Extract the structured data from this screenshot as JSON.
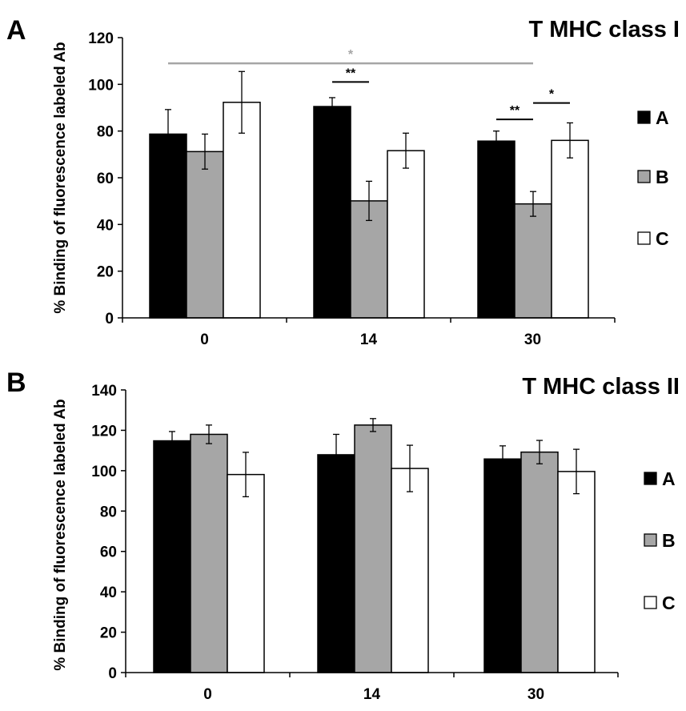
{
  "colors": {
    "A": "#000000",
    "B": "#a6a6a6",
    "C": "#ffffff",
    "bar_outline": "#000000",
    "sig_gray": "#a6a6a6",
    "sig_black": "#000000"
  },
  "chart_data": [
    {
      "panel": "A",
      "type": "bar",
      "title": "T MHC class I",
      "ylabel": "% Binding of fluorescence labeled Ab",
      "xlabel": "",
      "categories": [
        "0",
        "14",
        "30"
      ],
      "ylim": [
        0,
        120
      ],
      "yticks": [
        0,
        20,
        40,
        60,
        80,
        100,
        120
      ],
      "grid": false,
      "legend_position": "right",
      "series": [
        {
          "name": "A",
          "values": [
            78.7,
            90.5,
            75.7
          ],
          "errors": [
            10.5,
            3.8,
            4.3
          ]
        },
        {
          "name": "B",
          "values": [
            71.2,
            50.1,
            48.8
          ],
          "errors": [
            7.5,
            8.4,
            5.3
          ]
        },
        {
          "name": "C",
          "values": [
            92.3,
            71.6,
            76.0
          ],
          "errors": [
            13.2,
            7.5,
            7.5
          ]
        }
      ],
      "significance": [
        {
          "label": "*",
          "from": {
            "category": 0,
            "series": 0
          },
          "to": {
            "category": 2,
            "series": 1
          },
          "level": 109,
          "color": "gray"
        },
        {
          "label": "**",
          "from": {
            "category": 1,
            "series": 0
          },
          "to": {
            "category": 1,
            "series": 1
          },
          "level": 101,
          "color": "black"
        },
        {
          "label": "**",
          "from": {
            "category": 2,
            "series": 0
          },
          "to": {
            "category": 2,
            "series": 1
          },
          "level": 85,
          "color": "black"
        },
        {
          "label": "*",
          "from": {
            "category": 2,
            "series": 1
          },
          "to": {
            "category": 2,
            "series": 2
          },
          "level": 92,
          "color": "black"
        }
      ]
    },
    {
      "panel": "B",
      "type": "bar",
      "title": "T MHC class II",
      "ylabel": "% Binding of fluorescence labeled Ab",
      "xlabel": "",
      "categories": [
        "0",
        "14",
        "30"
      ],
      "ylim": [
        0,
        140
      ],
      "yticks": [
        0,
        20,
        40,
        60,
        80,
        100,
        120,
        140
      ],
      "grid": false,
      "legend_position": "right",
      "series": [
        {
          "name": "A",
          "values": [
            114.8,
            107.9,
            105.8
          ],
          "errors": [
            4.6,
            10.1,
            6.5
          ]
        },
        {
          "name": "B",
          "values": [
            118.0,
            122.6,
            109.2
          ],
          "errors": [
            4.6,
            3.2,
            5.8
          ]
        },
        {
          "name": "C",
          "values": [
            98.1,
            101.1,
            99.6
          ],
          "errors": [
            11.0,
            11.5,
            11.0
          ]
        }
      ],
      "significance": []
    }
  ]
}
